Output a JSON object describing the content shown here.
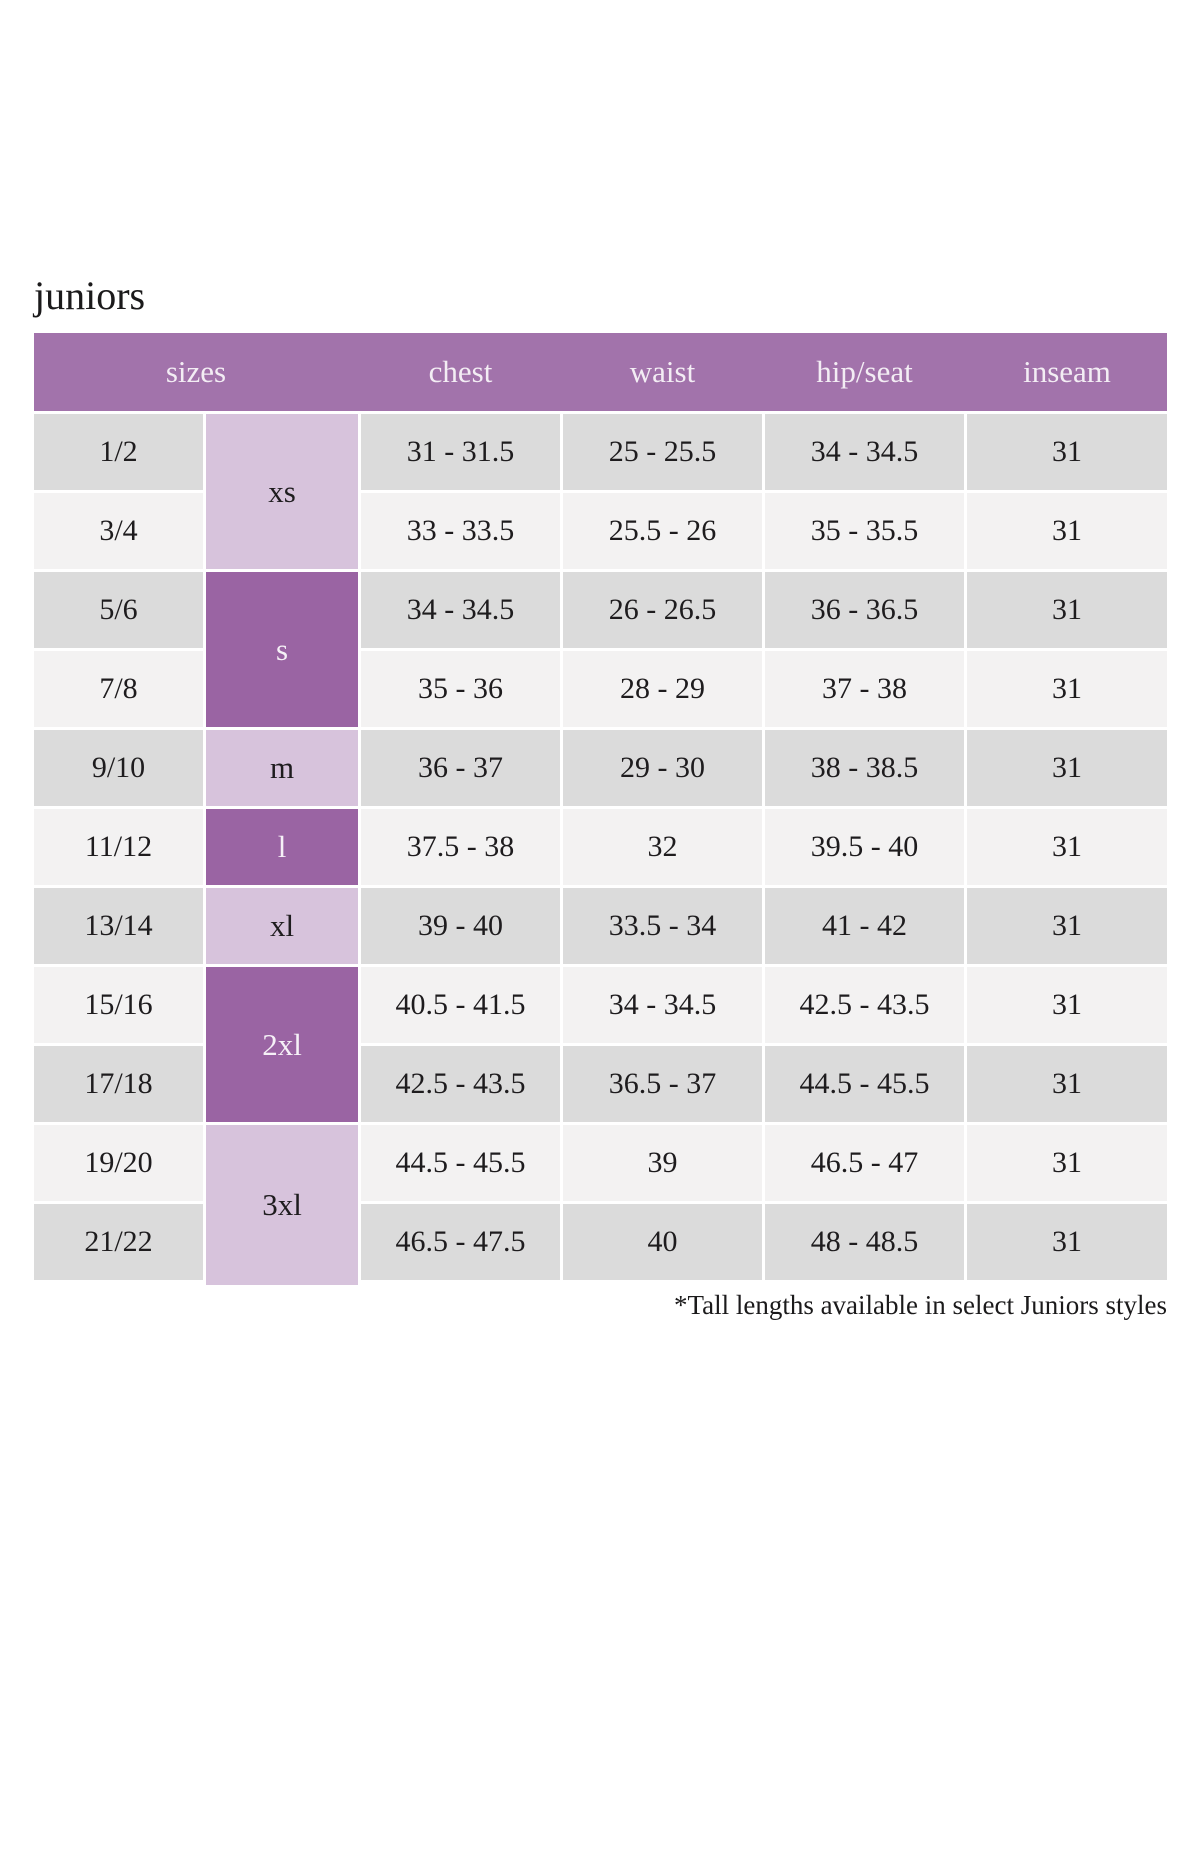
{
  "title": "juniors",
  "footnote": "*Tall lengths available in select Juniors styles",
  "colors": {
    "header_bg": "#a273ab",
    "header_text": "#f3edf4",
    "size_dark_bg": "#9a64a3",
    "size_dark_text": "#f6f1f7",
    "size_light_bg": "#d7c3dc",
    "size_light_text": "#1e1c1e",
    "row_odd_bg": "#dbdbdb",
    "row_even_bg": "#f3f2f2",
    "body_text": "#1e1c1e"
  },
  "chart_data": {
    "type": "table",
    "title": "juniors",
    "columns": [
      "sizes",
      "chest",
      "waist",
      "hip/seat",
      "inseam"
    ],
    "size_groups": [
      {
        "label": "xs",
        "span": 2,
        "shade": "light"
      },
      {
        "label": "s",
        "span": 2,
        "shade": "dark"
      },
      {
        "label": "m",
        "span": 1,
        "shade": "light"
      },
      {
        "label": "l",
        "span": 1,
        "shade": "dark"
      },
      {
        "label": "xl",
        "span": 1,
        "shade": "light"
      },
      {
        "label": "2xl",
        "span": 2,
        "shade": "dark"
      },
      {
        "label": "3xl",
        "span": 2,
        "shade": "light"
      }
    ],
    "rows": [
      [
        "1/2",
        "31 - 31.5",
        "25 - 25.5",
        "34 - 34.5",
        "31"
      ],
      [
        "3/4",
        "33 - 33.5",
        "25.5 - 26",
        "35 - 35.5",
        "31"
      ],
      [
        "5/6",
        "34 - 34.5",
        "26 - 26.5",
        "36 - 36.5",
        "31"
      ],
      [
        "7/8",
        "35 - 36",
        "28 - 29",
        "37 - 38",
        "31"
      ],
      [
        "9/10",
        "36 - 37",
        "29 - 30",
        "38 - 38.5",
        "31"
      ],
      [
        "11/12",
        "37.5 - 38",
        "32",
        "39.5 - 40",
        "31"
      ],
      [
        "13/14",
        "39 - 40",
        "33.5 - 34",
        "41 - 42",
        "31"
      ],
      [
        "15/16",
        "40.5 - 41.5",
        "34 - 34.5",
        "42.5 - 43.5",
        "31"
      ],
      [
        "17/18",
        "42.5 - 43.5",
        "36.5 - 37",
        "44.5 - 45.5",
        "31"
      ],
      [
        "19/20",
        "44.5 - 45.5",
        "39",
        "46.5 - 47",
        "31"
      ],
      [
        "21/22",
        "46.5 - 47.5",
        "40",
        "48 - 48.5",
        "31"
      ]
    ]
  }
}
